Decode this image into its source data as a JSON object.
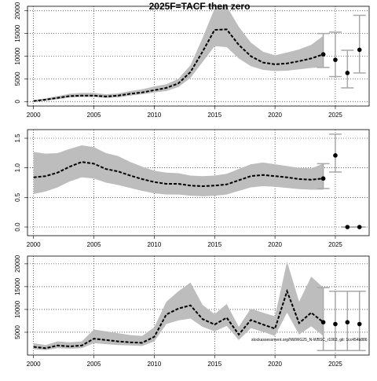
{
  "title": "2025F=TACF then zero",
  "footnote": "stockassessment.org/NWWG25_N-WBSC_r1063, git: 1cc454b886",
  "chart_data": [
    {
      "type": "line",
      "xlim": [
        1999.5,
        2027.8
      ],
      "ylim": [
        -1000,
        21000
      ],
      "xticks": [
        2000,
        2005,
        2010,
        2015,
        2020,
        2025
      ],
      "yticks": [
        0,
        5000,
        10000,
        15000,
        20000
      ],
      "grid": true,
      "color": "#000000",
      "band_color": "#bdbdbd",
      "bar_color": "#a8a8a8",
      "x": [
        2000,
        2001,
        2002,
        2003,
        2004,
        2005,
        2006,
        2007,
        2008,
        2009,
        2010,
        2011,
        2012,
        2013,
        2014,
        2015,
        2016,
        2017,
        2018,
        2019,
        2020,
        2021,
        2022,
        2023,
        2024
      ],
      "values": [
        100,
        400,
        800,
        1200,
        1300,
        1300,
        1100,
        1300,
        1700,
        2000,
        2500,
        3000,
        4000,
        6500,
        11000,
        15800,
        15900,
        12500,
        10000,
        8600,
        8200,
        8400,
        8900,
        9500,
        10400
      ],
      "upper": [
        300,
        700,
        1200,
        1700,
        1900,
        1900,
        1600,
        1800,
        2300,
        2700,
        3300,
        3800,
        5000,
        8000,
        14000,
        20500,
        21000,
        16500,
        13000,
        11000,
        10200,
        10800,
        11500,
        12500,
        14500
      ],
      "lower": [
        0,
        200,
        500,
        900,
        1000,
        1000,
        800,
        900,
        1300,
        1600,
        2000,
        2300,
        3200,
        5200,
        8700,
        12200,
        12000,
        9500,
        7800,
        7000,
        6700,
        6800,
        7100,
        7400,
        7600
      ],
      "projection": {
        "x": [
          2024,
          2025,
          2026,
          2027
        ],
        "values": [
          10400,
          9200,
          6300,
          11400
        ],
        "low": [
          7500,
          5500,
          3000,
          6300
        ],
        "high": [
          15000,
          15300,
          11300,
          19000
        ]
      }
    },
    {
      "type": "line",
      "xlim": [
        1999.5,
        2027.8
      ],
      "ylim": [
        -0.146,
        1.646
      ],
      "xticks": [
        2000,
        2005,
        2010,
        2015,
        2020,
        2025
      ],
      "yticks": [
        {
          "value": 0,
          "label": "0.0"
        },
        0.5,
        {
          "value": 1,
          "label": "1.0"
        },
        1.5
      ],
      "grid": true,
      "color": "#000000",
      "band_color": "#bdbdbd",
      "bar_color": "#a8a8a8",
      "x": [
        2000,
        2001,
        2002,
        2003,
        2004,
        2005,
        2006,
        2007,
        2008,
        2009,
        2010,
        2011,
        2012,
        2013,
        2014,
        2015,
        2016,
        2017,
        2018,
        2019,
        2020,
        2021,
        2022,
        2023,
        2024
      ],
      "values": [
        0.84,
        0.86,
        0.92,
        1.02,
        1.1,
        1.07,
        0.98,
        0.94,
        0.87,
        0.81,
        0.76,
        0.73,
        0.73,
        0.7,
        0.69,
        0.7,
        0.72,
        0.79,
        0.86,
        0.88,
        0.86,
        0.84,
        0.81,
        0.8,
        0.82
      ],
      "upper": [
        1.27,
        1.24,
        1.25,
        1.32,
        1.38,
        1.35,
        1.25,
        1.2,
        1.1,
        1.02,
        0.95,
        0.92,
        0.91,
        0.87,
        0.86,
        0.87,
        0.9,
        0.98,
        1.06,
        1.09,
        1.06,
        1.03,
        1.0,
        0.99,
        1.07
      ],
      "lower": [
        0.56,
        0.6,
        0.67,
        0.77,
        0.84,
        0.82,
        0.75,
        0.71,
        0.66,
        0.61,
        0.57,
        0.55,
        0.55,
        0.53,
        0.52,
        0.53,
        0.55,
        0.61,
        0.67,
        0.69,
        0.68,
        0.66,
        0.64,
        0.63,
        0.63
      ],
      "projection": {
        "x": [
          2024,
          2025,
          2026,
          2027
        ],
        "values": [
          0.82,
          1.21,
          0,
          0
        ],
        "low": [
          0.65,
          0.93,
          0,
          0
        ],
        "high": [
          1.07,
          1.57,
          0,
          0
        ]
      }
    },
    {
      "type": "line",
      "xlim": [
        1999.5,
        2027.8
      ],
      "ylim": [
        0,
        21700
      ],
      "xticks": [
        2000,
        2005,
        2010,
        2015,
        2020,
        2025
      ],
      "yticks": [
        5000,
        10000,
        15000,
        20000
      ],
      "grid": true,
      "color": "#000000",
      "band_color": "#bdbdbd",
      "bar_color": "#a8a8a8",
      "x": [
        2000,
        2001,
        2002,
        2003,
        2004,
        2005,
        2006,
        2007,
        2008,
        2009,
        2010,
        2011,
        2012,
        2013,
        2014,
        2015,
        2016,
        2017,
        2018,
        2019,
        2020,
        2021,
        2022,
        2023,
        2024
      ],
      "values": [
        1800,
        1500,
        2100,
        1900,
        2100,
        3600,
        3300,
        3000,
        2800,
        2700,
        4000,
        8900,
        10200,
        10900,
        7900,
        6700,
        8200,
        4500,
        7700,
        6700,
        5800,
        14000,
        7000,
        9300,
        7200
      ],
      "upper": [
        2600,
        2200,
        3000,
        2800,
        3000,
        5600,
        5200,
        4800,
        4400,
        4200,
        6100,
        11700,
        14000,
        15900,
        11000,
        9000,
        11200,
        6200,
        10200,
        9300,
        8500,
        20500,
        11700,
        17200,
        14800
      ],
      "lower": [
        1300,
        1100,
        1500,
        1400,
        1500,
        2600,
        2400,
        2200,
        2100,
        2000,
        3000,
        6800,
        7600,
        8000,
        6200,
        5200,
        6400,
        3300,
        5900,
        5100,
        4200,
        9300,
        4500,
        6300,
        4200
      ],
      "projection": {
        "x": [
          2024,
          2025,
          2026,
          2027
        ],
        "values": [
          7200,
          6800,
          7200,
          6800
        ],
        "low": [
          1000,
          1000,
          1000,
          1000
        ],
        "high": [
          14800,
          14000,
          14000,
          14000
        ]
      }
    }
  ]
}
